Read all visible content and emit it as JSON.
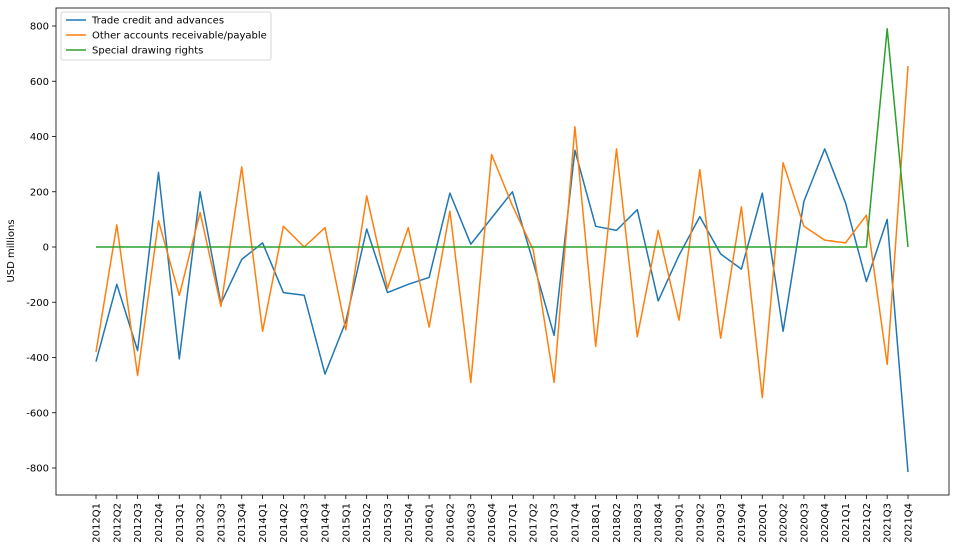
{
  "chart_data": {
    "type": "line",
    "title": "",
    "xlabel": "",
    "ylabel": "USD millions",
    "ylim": [
      -900,
      880
    ],
    "yticks": [
      -800,
      -600,
      -400,
      -200,
      0,
      200,
      400,
      600,
      800
    ],
    "grid": false,
    "legend_position": "top-left",
    "x": [
      "2012Q1",
      "2012Q2",
      "2012Q3",
      "2012Q4",
      "2013Q1",
      "2013Q2",
      "2013Q3",
      "2013Q4",
      "2014Q1",
      "2014Q2",
      "2014Q3",
      "2014Q4",
      "2015Q1",
      "2015Q2",
      "2015Q3",
      "2015Q4",
      "2016Q1",
      "2016Q2",
      "2016Q3",
      "2016Q4",
      "2017Q1",
      "2017Q2",
      "2017Q3",
      "2017Q4",
      "2018Q1",
      "2018Q2",
      "2018Q3",
      "2018Q4",
      "2019Q1",
      "2019Q2",
      "2019Q3",
      "2019Q4",
      "2020Q1",
      "2020Q2",
      "2020Q3",
      "2020Q4",
      "2021Q1",
      "2021Q2",
      "2021Q3",
      "2021Q4"
    ],
    "series": [
      {
        "name": "Trade credit and advances",
        "color": "#1f77b4",
        "values": [
          -415,
          -135,
          -375,
          270,
          -405,
          200,
          -205,
          -45,
          15,
          -165,
          -175,
          -460,
          -270,
          65,
          -165,
          -135,
          -110,
          195,
          10,
          105,
          200,
          -55,
          -320,
          350,
          75,
          60,
          135,
          -195,
          -30,
          110,
          -25,
          -80,
          195,
          -305,
          165,
          355,
          160,
          -125,
          100,
          -815
        ]
      },
      {
        "name": "Other accounts receivable/payable",
        "color": "#ff7f0e",
        "values": [
          -380,
          80,
          -465,
          95,
          -175,
          125,
          -215,
          290,
          -305,
          75,
          0,
          70,
          -300,
          185,
          -150,
          70,
          -290,
          130,
          -490,
          335,
          150,
          -10,
          -490,
          435,
          -360,
          355,
          -325,
          60,
          -265,
          280,
          -330,
          145,
          -545,
          305,
          75,
          25,
          15,
          115,
          -425,
          655
        ]
      },
      {
        "name": "Special drawing rights",
        "color": "#2ca02c",
        "values": [
          0,
          0,
          0,
          0,
          0,
          0,
          0,
          0,
          0,
          0,
          0,
          0,
          0,
          0,
          0,
          0,
          0,
          0,
          0,
          0,
          0,
          0,
          0,
          0,
          0,
          0,
          0,
          0,
          0,
          0,
          0,
          0,
          0,
          0,
          0,
          0,
          0,
          0,
          790,
          0
        ]
      }
    ]
  }
}
